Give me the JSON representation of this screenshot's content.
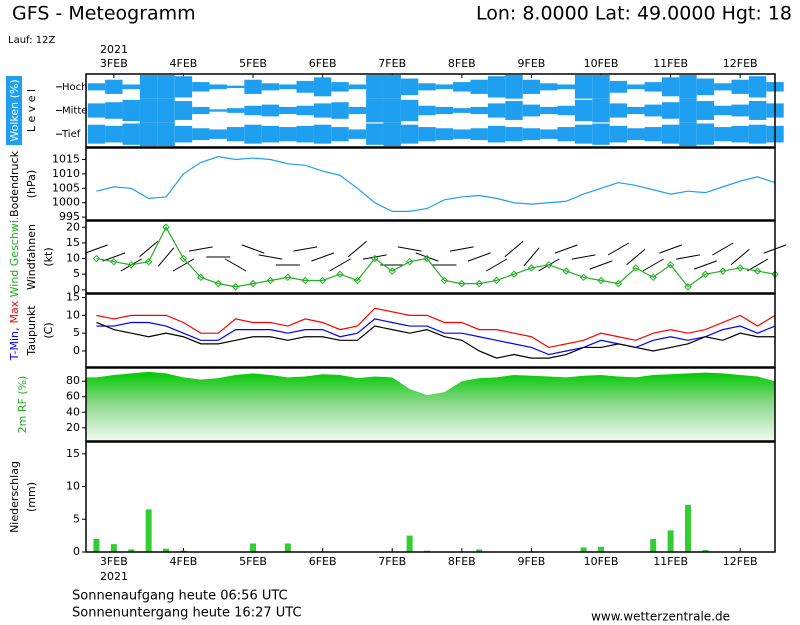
{
  "header": {
    "title": "GFS - Meteogramm",
    "location": "Lon: 8.0000 Lat: 49.0000 Hgt: 18",
    "run": "Lauf: 12Z",
    "year_top": "2021",
    "year_bottom": "2021"
  },
  "footer": {
    "sunrise": "Sonnenaufgang heute 06:56 UTC",
    "sunset": "Sonnenuntergang heute 16:27 UTC",
    "source": "www.wetterzentrale.de"
  },
  "chart_data": [
    {
      "type": "cloud",
      "ylabel": [
        [
          {
            "text": "Wolken (%)",
            "color": "#ffffff"
          }
        ],
        [
          {
            "text": "L e v e l",
            "color": "#000000"
          }
        ]
      ],
      "label_box": "#1e9ff0",
      "xlim": [
        2.6,
        12.5
      ],
      "xticks": [
        {
          "value": 3,
          "label": "3FEB"
        },
        {
          "value": 4,
          "label": "4FEB"
        },
        {
          "value": 5,
          "label": "5FEB"
        },
        {
          "value": 6,
          "label": "6FEB"
        },
        {
          "value": 7,
          "label": "7FEB"
        },
        {
          "value": 8,
          "label": "8FEB"
        },
        {
          "value": 9,
          "label": "9FEB"
        },
        {
          "value": 10,
          "label": "10FEB"
        },
        {
          "value": 11,
          "label": "11FEB"
        },
        {
          "value": 12,
          "label": "12FEB"
        }
      ],
      "x": [
        2.75,
        3,
        3.25,
        3.5,
        3.75,
        4,
        4.25,
        4.5,
        4.75,
        5,
        5.25,
        5.5,
        5.75,
        6,
        6.25,
        6.5,
        6.75,
        7,
        7.25,
        7.5,
        7.75,
        8,
        8.25,
        8.5,
        8.75,
        9,
        9.25,
        9.5,
        9.75,
        10,
        10.25,
        10.5,
        10.75,
        11,
        11.25,
        11.5,
        11.75,
        12,
        12.25,
        12.5
      ],
      "series": [
        {
          "name": "Hoch",
          "color": "#1e9ff0",
          "values": [
            30,
            60,
            20,
            100,
            100,
            90,
            40,
            20,
            10,
            60,
            30,
            20,
            50,
            80,
            40,
            20,
            100,
            100,
            70,
            30,
            20,
            40,
            60,
            90,
            100,
            60,
            30,
            20,
            100,
            100,
            50,
            20,
            40,
            80,
            100,
            70,
            30,
            60,
            90,
            40
          ]
        },
        {
          "name": "Mittel",
          "color": "#1e9ff0",
          "values": [
            60,
            70,
            90,
            100,
            100,
            80,
            30,
            10,
            20,
            40,
            50,
            30,
            40,
            60,
            70,
            30,
            100,
            100,
            90,
            40,
            30,
            20,
            30,
            60,
            80,
            50,
            30,
            40,
            90,
            100,
            60,
            30,
            50,
            70,
            100,
            80,
            40,
            50,
            80,
            60
          ]
        },
        {
          "name": "Tief",
          "color": "#1e9ff0",
          "values": [
            80,
            70,
            90,
            100,
            100,
            70,
            50,
            40,
            60,
            80,
            70,
            60,
            70,
            80,
            60,
            40,
            90,
            100,
            80,
            60,
            50,
            40,
            50,
            70,
            60,
            50,
            40,
            60,
            80,
            90,
            70,
            50,
            60,
            80,
            100,
            90,
            60,
            70,
            80,
            70
          ]
        }
      ]
    },
    {
      "type": "line",
      "ylabel": [
        [
          {
            "text": "Bodendruck",
            "color": "#000000"
          }
        ],
        [
          {
            "text": "(hPa)",
            "color": "#000000"
          }
        ]
      ],
      "xlim": [
        2.6,
        12.5
      ],
      "ylim": [
        994,
        1019
      ],
      "yticks": [
        995,
        1000,
        1005,
        1010,
        1015
      ],
      "x": [
        2.75,
        3,
        3.25,
        3.5,
        3.75,
        4,
        4.25,
        4.5,
        4.75,
        5,
        5.25,
        5.5,
        5.75,
        6,
        6.25,
        6.5,
        6.75,
        7,
        7.25,
        7.5,
        7.75,
        8,
        8.25,
        8.5,
        8.75,
        9,
        9.25,
        9.5,
        9.75,
        10,
        10.25,
        10.5,
        10.75,
        11,
        11.25,
        11.5,
        11.75,
        12,
        12.25,
        12.5
      ],
      "series": [
        {
          "color": "#1e9ff0",
          "values": [
            1004,
            1005.5,
            1005,
            1001.5,
            1002,
            1010,
            1014,
            1016,
            1015,
            1015.5,
            1015,
            1013.5,
            1013,
            1011,
            1009.5,
            1005,
            1000,
            997,
            997,
            998,
            1001,
            1002,
            1002.5,
            1001.5,
            1000,
            999.5,
            1000,
            1000.5,
            1003,
            1005,
            1007,
            1006,
            1004.5,
            1003,
            1004,
            1003.5,
            1005.5,
            1007.5,
            1009,
            1007
          ]
        }
      ]
    },
    {
      "type": "wind",
      "ylabel": [
        [
          {
            "text": "Wind Geschwi.",
            "color": "#22b022"
          }
        ],
        [
          {
            "text": "Windfahnen",
            "color": "#000000"
          }
        ],
        [
          {
            "text": "(kt)",
            "color": "#000000"
          }
        ]
      ],
      "xlim": [
        2.6,
        12.5
      ],
      "ylim": [
        -1,
        22
      ],
      "yticks": [
        0,
        5,
        10,
        15,
        20
      ],
      "x": [
        2.75,
        3,
        3.25,
        3.5,
        3.75,
        4,
        4.25,
        4.5,
        4.75,
        5,
        5.25,
        5.5,
        5.75,
        6,
        6.25,
        6.5,
        6.75,
        7,
        7.25,
        7.5,
        7.75,
        8,
        8.25,
        8.5,
        8.75,
        9,
        9.25,
        9.5,
        9.75,
        10,
        10.25,
        10.5,
        10.75,
        11,
        11.25,
        11.5,
        11.75,
        12,
        12.25,
        12.5
      ],
      "series": [
        {
          "color": "#22b022",
          "values": [
            10,
            9,
            8,
            9,
            20,
            10,
            4,
            2,
            1,
            2,
            3,
            4,
            3,
            3,
            5,
            3,
            10,
            6,
            9,
            10,
            3,
            2,
            2,
            3,
            5,
            7,
            8,
            6,
            4,
            3,
            2,
            7,
            4,
            8,
            1,
            5,
            6,
            7,
            6,
            5
          ],
          "direction": [
            250,
            250,
            240,
            230,
            220,
            240,
            260,
            270,
            300,
            290,
            280,
            270,
            260,
            250,
            240,
            230,
            260,
            270,
            280,
            290,
            270,
            260,
            250,
            240,
            230,
            220,
            240,
            250,
            260,
            250,
            240,
            230,
            240,
            250,
            260,
            250,
            240,
            230,
            240,
            250
          ]
        }
      ]
    },
    {
      "type": "line",
      "ylabel": [
        [
          {
            "text": "T-Min,",
            "color": "#0000ff"
          },
          {
            "text": "Max",
            "color": "#ff0000"
          }
        ],
        [
          {
            "text": "Taupunkt",
            "color": "#000000"
          }
        ],
        [
          {
            "text": "(C)",
            "color": "#000000"
          }
        ]
      ],
      "xlim": [
        2.6,
        12.5
      ],
      "ylim": [
        -4.5,
        16
      ],
      "yticks": [
        0,
        5,
        10,
        15
      ],
      "x": [
        2.75,
        3,
        3.25,
        3.5,
        3.75,
        4,
        4.25,
        4.5,
        4.75,
        5,
        5.25,
        5.5,
        5.75,
        6,
        6.25,
        6.5,
        6.75,
        7,
        7.25,
        7.5,
        7.75,
        8,
        8.25,
        8.5,
        8.75,
        9,
        9.25,
        9.5,
        9.75,
        10,
        10.25,
        10.5,
        10.75,
        11,
        11.25,
        11.5,
        11.75,
        12,
        12.25,
        12.5
      ],
      "series": [
        {
          "color": "#ff0000",
          "values": [
            10,
            9,
            10,
            10,
            10,
            8,
            5,
            5,
            9,
            8,
            8,
            7,
            9,
            8,
            6,
            7,
            12,
            11,
            10,
            10,
            8,
            8,
            6,
            6,
            5,
            4,
            1,
            2,
            3,
            5,
            4,
            3,
            5,
            6,
            5,
            6,
            8,
            10,
            7,
            10
          ]
        },
        {
          "color": "#0000ff",
          "values": [
            7,
            7,
            8,
            8,
            7,
            5,
            3,
            3,
            6,
            6,
            6,
            5,
            6,
            6,
            4,
            5,
            9,
            8,
            7,
            7,
            5,
            5,
            4,
            3,
            2,
            1,
            -1,
            0,
            1,
            3,
            2,
            1,
            3,
            4,
            3,
            4,
            6,
            7,
            5,
            7
          ]
        },
        {
          "color": "#000000",
          "values": [
            8,
            6,
            5,
            4,
            5,
            4,
            2,
            2,
            3,
            4,
            4,
            3,
            4,
            4,
            3,
            3,
            7,
            6,
            5,
            6,
            4,
            3,
            0,
            -2,
            -1,
            -2,
            -2,
            -1,
            1,
            1,
            2,
            1,
            0,
            1,
            2,
            4,
            3,
            5,
            4,
            4
          ]
        }
      ]
    },
    {
      "type": "area",
      "ylabel": [
        [
          {
            "text": "2m RF (%)",
            "color": "#22b022"
          }
        ]
      ],
      "xlim": [
        2.6,
        12.5
      ],
      "ylim": [
        3,
        97
      ],
      "yticks": [
        20,
        40,
        60,
        80
      ],
      "x": [
        2.75,
        3,
        3.25,
        3.5,
        3.75,
        4,
        4.25,
        4.5,
        4.75,
        5,
        5.25,
        5.5,
        5.75,
        6,
        6.25,
        6.5,
        6.75,
        7,
        7.25,
        7.5,
        7.75,
        8,
        8.25,
        8.5,
        8.75,
        9,
        9.25,
        9.5,
        9.75,
        10,
        10.25,
        10.5,
        10.75,
        11,
        11.25,
        11.5,
        11.75,
        12,
        12.25,
        12.5
      ],
      "series": [
        {
          "color": "#11cc11",
          "values": [
            85,
            88,
            90,
            92,
            90,
            85,
            82,
            84,
            88,
            90,
            88,
            85,
            86,
            89,
            88,
            84,
            86,
            85,
            70,
            62,
            66,
            80,
            84,
            85,
            88,
            87,
            86,
            85,
            87,
            88,
            86,
            85,
            88,
            89,
            90,
            91,
            90,
            88,
            86,
            80
          ]
        }
      ]
    },
    {
      "type": "bar",
      "ylabel": [
        [
          {
            "text": "Niederschlag",
            "color": "#000000"
          }
        ],
        [
          {
            "text": "(mm)",
            "color": "#000000"
          }
        ]
      ],
      "xlim": [
        2.6,
        12.5
      ],
      "ylim": [
        0,
        16.8
      ],
      "yticks": [
        0,
        5,
        10,
        15
      ],
      "xticks": [
        {
          "value": 3,
          "label": "3FEB"
        },
        {
          "value": 4,
          "label": "4FEB"
        },
        {
          "value": 5,
          "label": "5FEB"
        },
        {
          "value": 6,
          "label": "6FEB"
        },
        {
          "value": 7,
          "label": "7FEB"
        },
        {
          "value": 8,
          "label": "8FEB"
        },
        {
          "value": 9,
          "label": "9FEB"
        },
        {
          "value": 10,
          "label": "10FEB"
        },
        {
          "value": 11,
          "label": "11FEB"
        },
        {
          "value": 12,
          "label": "12FEB"
        }
      ],
      "x": [
        2.75,
        3,
        3.25,
        3.5,
        3.75,
        4,
        4.25,
        4.5,
        4.75,
        5,
        5.25,
        5.5,
        5.75,
        6,
        6.25,
        6.5,
        6.75,
        7,
        7.25,
        7.5,
        7.75,
        8,
        8.25,
        8.5,
        8.75,
        9,
        9.25,
        9.5,
        9.75,
        10,
        10.25,
        10.5,
        10.75,
        11,
        11.25,
        11.5,
        11.75,
        12,
        12.25,
        12.5
      ],
      "series": [
        {
          "color": "#33cc33",
          "values": [
            2,
            1.2,
            0.4,
            6.5,
            0.5,
            0.2,
            0,
            0,
            0,
            1.3,
            0,
            1.3,
            0,
            0,
            0,
            0,
            0,
            0,
            2.5,
            0.2,
            0,
            0,
            0.4,
            0,
            0,
            0,
            0,
            0,
            0.7,
            0.8,
            0,
            0,
            2,
            3.3,
            7.2,
            0.3,
            0,
            0,
            0,
            0
          ]
        }
      ]
    }
  ]
}
